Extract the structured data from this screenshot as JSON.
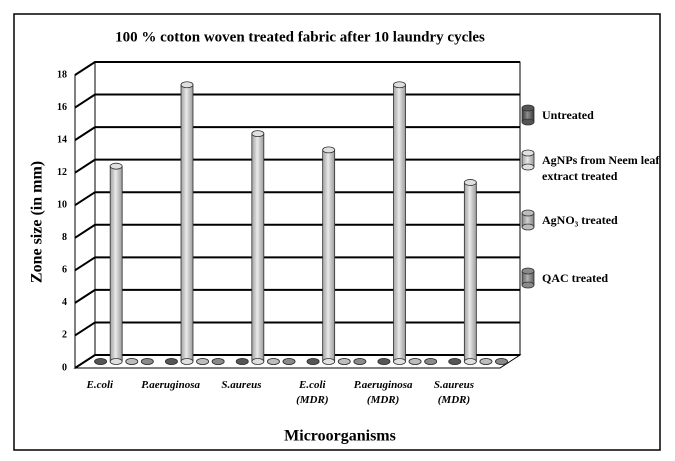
{
  "chart_data": {
    "type": "bar3d",
    "title": "100 % cotton woven treated fabric after 10 laundry cycles",
    "xlabel": "Microorganisms",
    "ylabel": "Zone size (in mm)",
    "categories": [
      "E.coli",
      "P.aeruginosa",
      "S.aureus",
      "E.coli (MDR)",
      "P.aeruginosa (MDR)",
      "S.aureus (MDR)"
    ],
    "series": [
      {
        "name": "Untreated",
        "color": "#555555",
        "values": [
          0,
          0,
          0,
          0,
          0,
          0
        ]
      },
      {
        "name": "AgNPs from Neem leaf extract treated",
        "color": "#e0e0e0",
        "values": [
          12,
          17,
          14,
          13,
          17,
          11
        ]
      },
      {
        "name": "AgNO₃ treated",
        "color": "#bdbdbd",
        "values": [
          0,
          0,
          0,
          0,
          0,
          0
        ]
      },
      {
        "name": "QAC treated",
        "color": "#8a8a8a",
        "values": [
          0,
          0,
          0,
          0,
          0,
          0
        ]
      }
    ],
    "ylim": [
      0,
      18
    ],
    "yticks": [
      0,
      2,
      4,
      6,
      8,
      10,
      12,
      14,
      16,
      18
    ],
    "grid": true,
    "legend": "right"
  }
}
